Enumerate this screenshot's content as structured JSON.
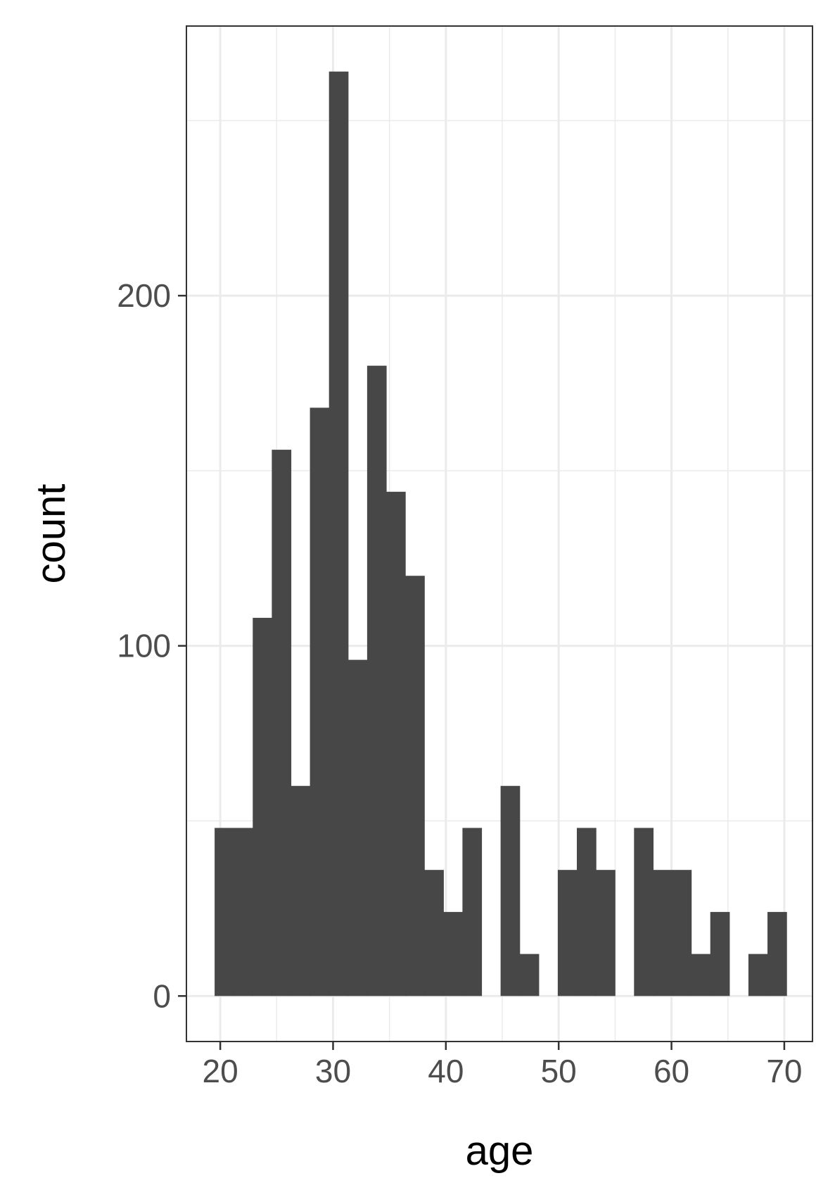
{
  "chart_data": {
    "type": "bar",
    "xlabel": "age",
    "ylabel": "count",
    "xlim": [
      17,
      72.5
    ],
    "ylim": [
      -13,
      277
    ],
    "x_ticks": [
      20,
      30,
      40,
      50,
      60,
      70
    ],
    "y_ticks": [
      0,
      100,
      200
    ],
    "x_minor_gridlines": [
      25,
      35,
      45,
      55,
      65
    ],
    "y_minor_gridlines": [
      50,
      150,
      250
    ],
    "grid": true,
    "bin_width": 1.69,
    "bins": [
      {
        "x0": 19.5,
        "x1": 21.19,
        "count": 48
      },
      {
        "x0": 21.19,
        "x1": 22.88,
        "count": 48
      },
      {
        "x0": 22.88,
        "x1": 24.57,
        "count": 108
      },
      {
        "x0": 24.57,
        "x1": 26.26,
        "count": 156
      },
      {
        "x0": 26.26,
        "x1": 27.95,
        "count": 60
      },
      {
        "x0": 27.95,
        "x1": 29.64,
        "count": 168
      },
      {
        "x0": 29.64,
        "x1": 31.33,
        "count": 264
      },
      {
        "x0": 31.33,
        "x1": 33.02,
        "count": 96
      },
      {
        "x0": 33.02,
        "x1": 34.71,
        "count": 180
      },
      {
        "x0": 34.71,
        "x1": 36.4,
        "count": 144
      },
      {
        "x0": 36.4,
        "x1": 38.09,
        "count": 120
      },
      {
        "x0": 38.09,
        "x1": 39.78,
        "count": 36
      },
      {
        "x0": 39.78,
        "x1": 41.47,
        "count": 24
      },
      {
        "x0": 41.47,
        "x1": 43.16,
        "count": 48
      },
      {
        "x0": 43.16,
        "x1": 44.85,
        "count": 0
      },
      {
        "x0": 44.85,
        "x1": 46.54,
        "count": 60
      },
      {
        "x0": 46.54,
        "x1": 48.23,
        "count": 12
      },
      {
        "x0": 48.23,
        "x1": 49.92,
        "count": 0
      },
      {
        "x0": 49.92,
        "x1": 51.61,
        "count": 36
      },
      {
        "x0": 51.61,
        "x1": 53.3,
        "count": 48
      },
      {
        "x0": 53.3,
        "x1": 54.99,
        "count": 36
      },
      {
        "x0": 54.99,
        "x1": 56.68,
        "count": 0
      },
      {
        "x0": 56.68,
        "x1": 58.37,
        "count": 48
      },
      {
        "x0": 58.37,
        "x1": 60.06,
        "count": 36
      },
      {
        "x0": 60.06,
        "x1": 61.75,
        "count": 36
      },
      {
        "x0": 61.75,
        "x1": 63.44,
        "count": 12
      },
      {
        "x0": 63.44,
        "x1": 65.13,
        "count": 24
      },
      {
        "x0": 65.13,
        "x1": 66.82,
        "count": 0
      },
      {
        "x0": 66.82,
        "x1": 68.51,
        "count": 12
      },
      {
        "x0": 68.51,
        "x1": 70.2,
        "count": 24
      }
    ],
    "colors": {
      "bar": "#474747",
      "grid": "#ebebeb",
      "panel_border": "#333333",
      "tick": "#333333",
      "tick_label": "#4d4d4d",
      "axis_title": "#000000",
      "background": "#ffffff"
    }
  }
}
